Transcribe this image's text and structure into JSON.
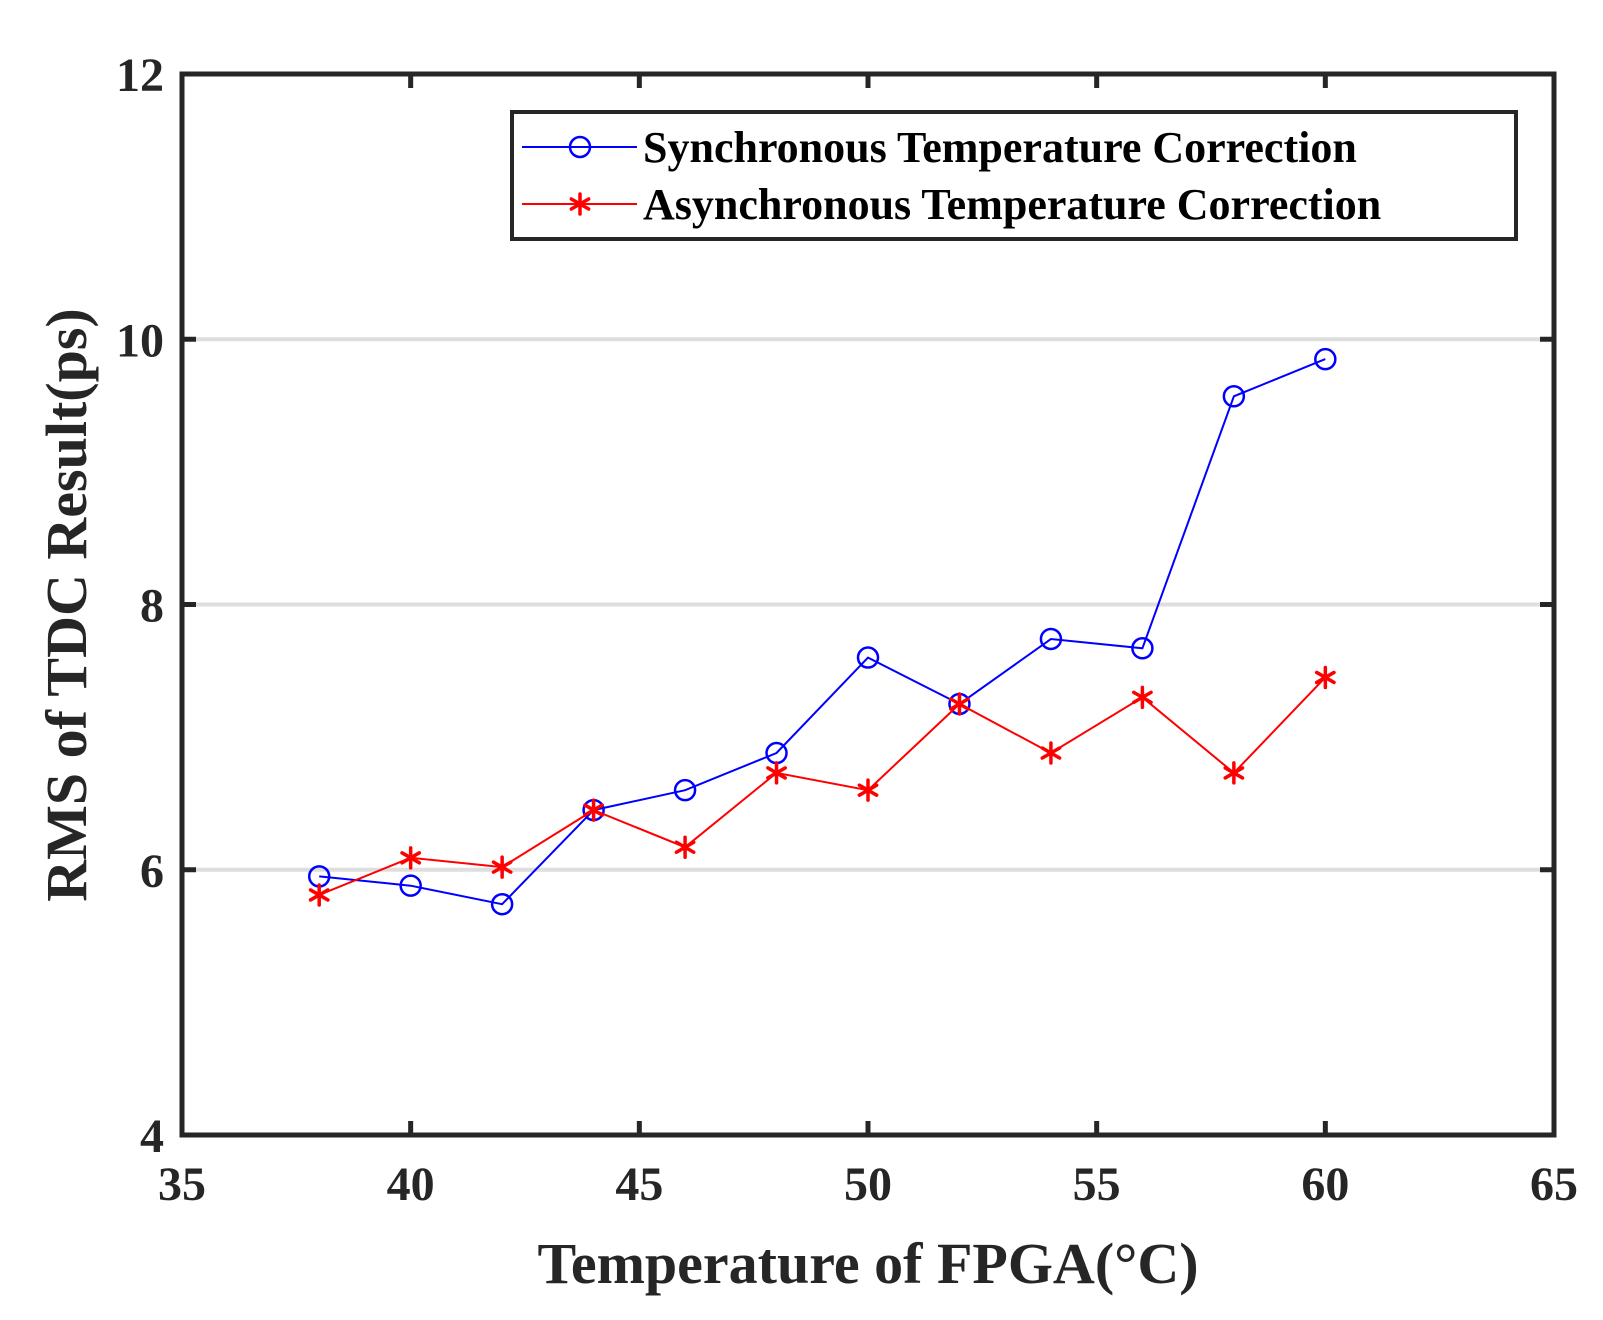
{
  "chart_data": {
    "type": "line",
    "title": "",
    "xlabel": "Temperature of FPGA(°C)",
    "ylabel": "RMS of TDC Result(ps)",
    "xlim": [
      35,
      65
    ],
    "ylim": [
      4,
      12
    ],
    "xticks": [
      "35",
      "40",
      "45",
      "50",
      "55",
      "60",
      "65"
    ],
    "yticks": [
      "4",
      "6",
      "8",
      "10",
      "12"
    ],
    "ygrid": [
      6,
      8,
      10
    ],
    "legend_position": "top-right",
    "x": [
      38,
      40,
      42,
      44,
      46,
      48,
      50,
      52,
      54,
      56,
      58,
      60
    ],
    "series": [
      {
        "name": "Synchronous Temperature Correction",
        "color": "#0000ff",
        "marker": "circle",
        "values": [
          5.95,
          5.88,
          5.74,
          6.45,
          6.6,
          6.88,
          7.6,
          7.25,
          7.74,
          7.67,
          9.57,
          9.85
        ]
      },
      {
        "name": "Asynchronous Temperature Correction",
        "color": "#ff0000",
        "marker": "asterisk",
        "values": [
          5.81,
          6.09,
          6.02,
          6.45,
          6.17,
          6.73,
          6.6,
          7.25,
          6.88,
          7.3,
          6.73,
          7.45
        ]
      }
    ]
  }
}
